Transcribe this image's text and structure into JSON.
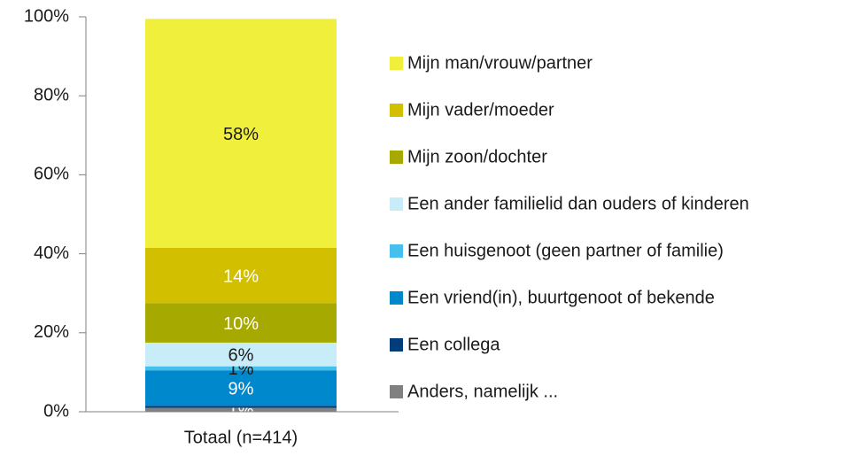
{
  "chart_data": {
    "type": "stacked_bar",
    "categories": [
      "Totaal (n=414)"
    ],
    "series": [
      {
        "name": "Mijn man/vrouw/partner",
        "color": "#f0f03c",
        "label_color": "#1a1a1a",
        "values": [
          58
        ],
        "value_labels": [
          "58%"
        ]
      },
      {
        "name": "Mijn vader/moeder",
        "color": "#d2c000",
        "label_color": "#ffffff",
        "values": [
          14
        ],
        "value_labels": [
          "14%"
        ]
      },
      {
        "name": "Mijn zoon/dochter",
        "color": "#a6aa00",
        "label_color": "#ffffff",
        "values": [
          10
        ],
        "value_labels": [
          "10%"
        ]
      },
      {
        "name": "Een ander familielid dan ouders of kinderen",
        "color": "#c8ecf8",
        "label_color": "#1a1a1a",
        "values": [
          6
        ],
        "value_labels": [
          "6%"
        ]
      },
      {
        "name": "Een huisgenoot (geen partner of familie)",
        "color": "#45c0ec",
        "label_color": "#1a1a1a",
        "values": [
          1
        ],
        "value_labels": [
          "1%"
        ]
      },
      {
        "name": "Een vriend(in), buurtgenoot of bekende",
        "color": "#0088cc",
        "label_color": "#ffffff",
        "values": [
          9
        ],
        "value_labels": [
          "9%"
        ]
      },
      {
        "name": "Een collega",
        "color": "#003d7a",
        "label_color": "#ffffff",
        "values": [
          0.5
        ],
        "value_labels": [
          null
        ]
      },
      {
        "name": "Anders, namelijk ...",
        "color": "#808080",
        "label_color": "#ffffff",
        "values": [
          1
        ],
        "value_labels": [
          "1%"
        ]
      }
    ],
    "ylim": [
      0,
      100
    ],
    "yticks": [
      {
        "value": 0,
        "label": "0%"
      },
      {
        "value": 20,
        "label": "20%"
      },
      {
        "value": 40,
        "label": "40%"
      },
      {
        "value": 60,
        "label": "60%"
      },
      {
        "value": 80,
        "label": "80%"
      },
      {
        "value": 100,
        "label": "100%"
      }
    ],
    "legend": "right"
  }
}
